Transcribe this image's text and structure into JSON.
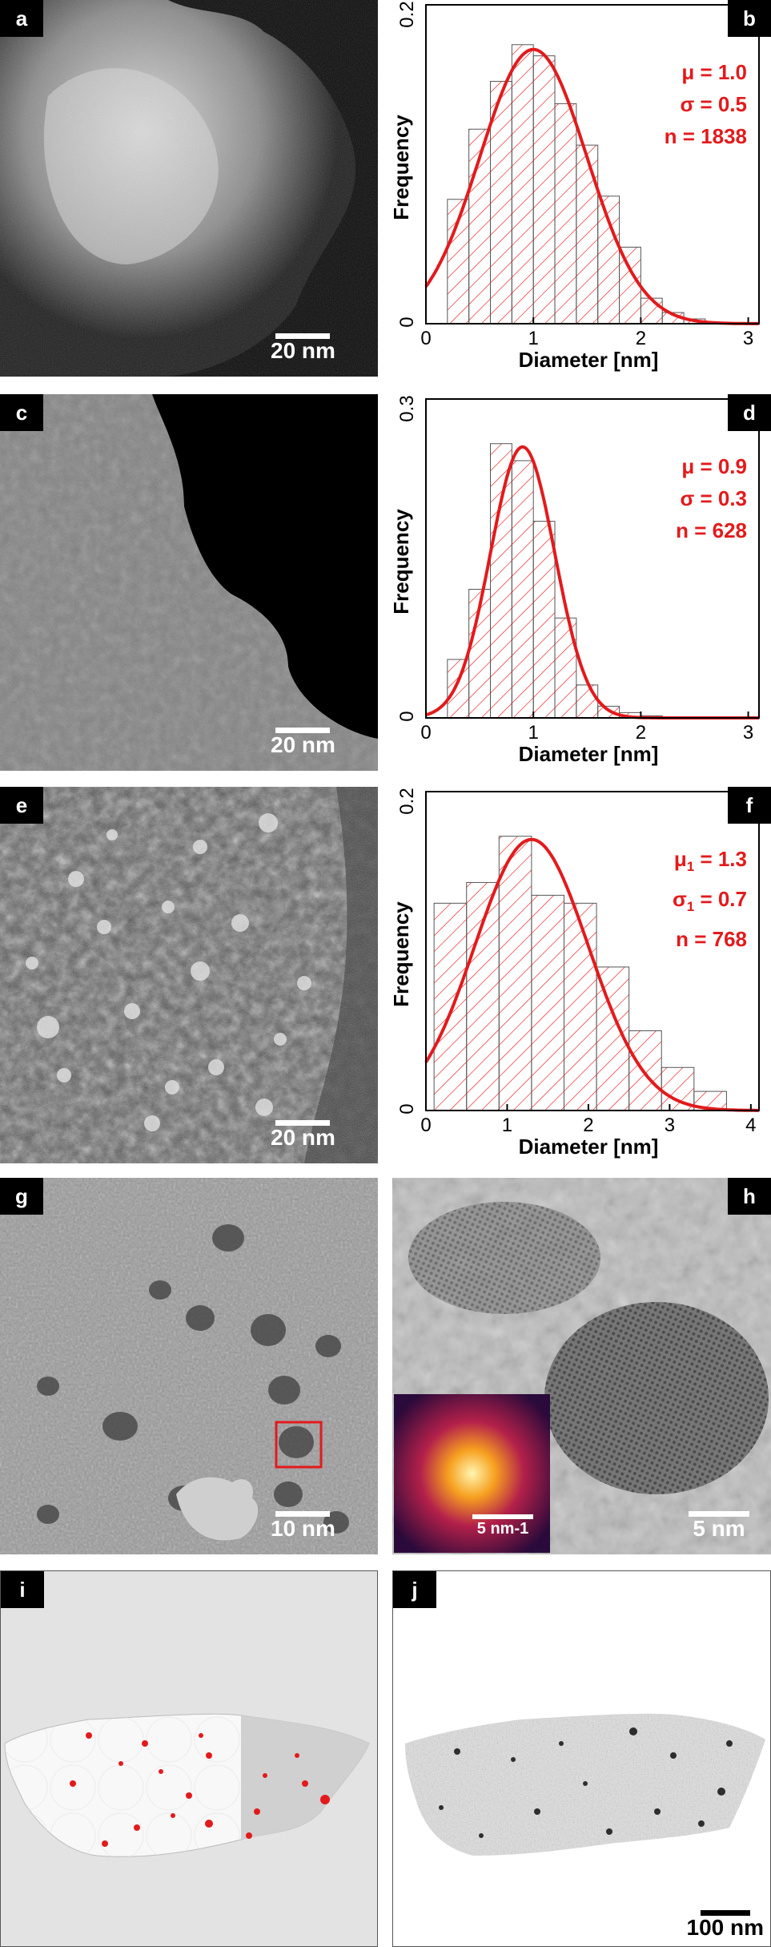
{
  "panels": {
    "a": {
      "letter": "a",
      "scale": "20 nm"
    },
    "b": {
      "letter": "b"
    },
    "c": {
      "letter": "c",
      "scale": "20 nm"
    },
    "d": {
      "letter": "d"
    },
    "e": {
      "letter": "e",
      "scale": "20 nm"
    },
    "f": {
      "letter": "f"
    },
    "g": {
      "letter": "g",
      "scale": "10 nm"
    },
    "h": {
      "letter": "h",
      "scale": "5 nm",
      "inset_scale": "5 nm-1"
    },
    "i": {
      "letter": "i"
    },
    "j": {
      "letter": "j",
      "scale": "100 nm"
    }
  },
  "stats": {
    "b": {
      "mu": "μ = 1.0",
      "sigma": "σ = 0.5",
      "n": "n = 1838"
    },
    "d": {
      "mu": "μ = 0.9",
      "sigma": "σ = 0.3",
      "n": "n = 628"
    },
    "f": {
      "mu_sym": "μ",
      "mu_sub": "1",
      "mu_val": " = 1.3",
      "sigma_sym": "σ",
      "sigma_sub": "1",
      "sigma_val": " = 0.7",
      "n": "n = 768"
    }
  },
  "colors": {
    "accent": "#e31a1c",
    "background": "#ffffff",
    "frame": "#000000"
  },
  "chart_data": [
    {
      "panel": "b",
      "type": "bar",
      "xlabel": "Diameter [nm]",
      "ylabel": "Frequency",
      "xlim": [
        0,
        3.1
      ],
      "ylim": [
        0,
        0.2
      ],
      "xticks": [
        0,
        1,
        2,
        3
      ],
      "yticks": [
        0,
        0.2
      ],
      "bin_edges": [
        0.2,
        0.4,
        0.6,
        0.8,
        1.0,
        1.2,
        1.4,
        1.6,
        1.8,
        2.0,
        2.2,
        2.4,
        2.6
      ],
      "values": [
        0.078,
        0.122,
        0.152,
        0.175,
        0.168,
        0.138,
        0.112,
        0.08,
        0.048,
        0.016,
        0.007,
        0.003
      ],
      "fit": {
        "mu": 1.0,
        "sigma": 0.5,
        "peak": 0.172
      },
      "stats_key": "b"
    },
    {
      "panel": "d",
      "type": "bar",
      "xlabel": "Diameter [nm]",
      "ylabel": "Frequency",
      "xlim": [
        0,
        3.1
      ],
      "ylim": [
        0,
        0.3
      ],
      "xticks": [
        0,
        1,
        2,
        3
      ],
      "yticks": [
        0,
        0.3
      ],
      "bin_edges": [
        0.2,
        0.4,
        0.6,
        0.8,
        1.0,
        1.2,
        1.4,
        1.6,
        1.8,
        2.0,
        2.2
      ],
      "values": [
        0.055,
        0.121,
        0.258,
        0.242,
        0.185,
        0.094,
        0.031,
        0.011,
        0.005,
        0.002
      ],
      "fit": {
        "mu": 0.9,
        "sigma": 0.3,
        "peak": 0.255
      },
      "stats_key": "d"
    },
    {
      "panel": "f",
      "type": "bar",
      "xlabel": "Diameter [nm]",
      "ylabel": "Frequency",
      "xlim": [
        0,
        4.1
      ],
      "ylim": [
        0,
        0.2
      ],
      "xticks": [
        0,
        1,
        2,
        3,
        4
      ],
      "yticks": [
        0,
        0.2
      ],
      "bin_edges": [
        0.1,
        0.5,
        0.9,
        1.3,
        1.7,
        2.1,
        2.5,
        2.9,
        3.3,
        3.7
      ],
      "values": [
        0.13,
        0.143,
        0.172,
        0.135,
        0.13,
        0.09,
        0.05,
        0.027,
        0.012
      ],
      "fit": {
        "mu": 1.3,
        "sigma": 0.7,
        "peak": 0.17
      },
      "stats_key": "f"
    }
  ]
}
